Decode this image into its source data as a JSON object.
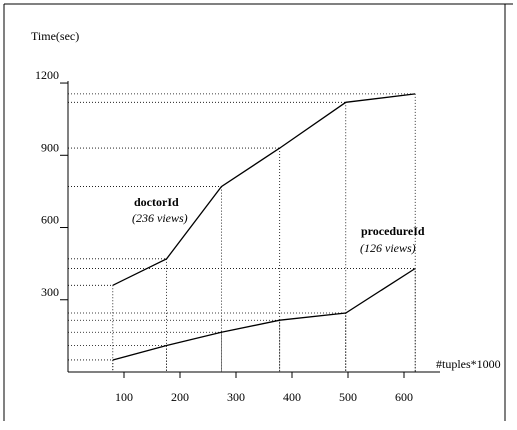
{
  "chart_data": {
    "type": "line",
    "xlabel": "#tuples*1000",
    "ylabel": "Time(sec)",
    "xlim": [
      0,
      650
    ],
    "ylim": [
      0,
      1300
    ],
    "x_ticks": [
      100,
      200,
      300,
      400,
      500,
      600
    ],
    "y_ticks": [
      300,
      600,
      900,
      1200
    ],
    "grid": false,
    "series": [
      {
        "name": "doctorId",
        "annotation": "(236 views)",
        "x": [
          80,
          176,
          274,
          378,
          496,
          620
        ],
        "y": [
          360,
          470,
          770,
          930,
          1120,
          1155
        ]
      },
      {
        "name": "procedureId",
        "annotation": "(126 views)",
        "x": [
          80,
          176,
          274,
          378,
          496,
          620
        ],
        "y": [
          50,
          110,
          165,
          215,
          245,
          430
        ]
      }
    ]
  }
}
